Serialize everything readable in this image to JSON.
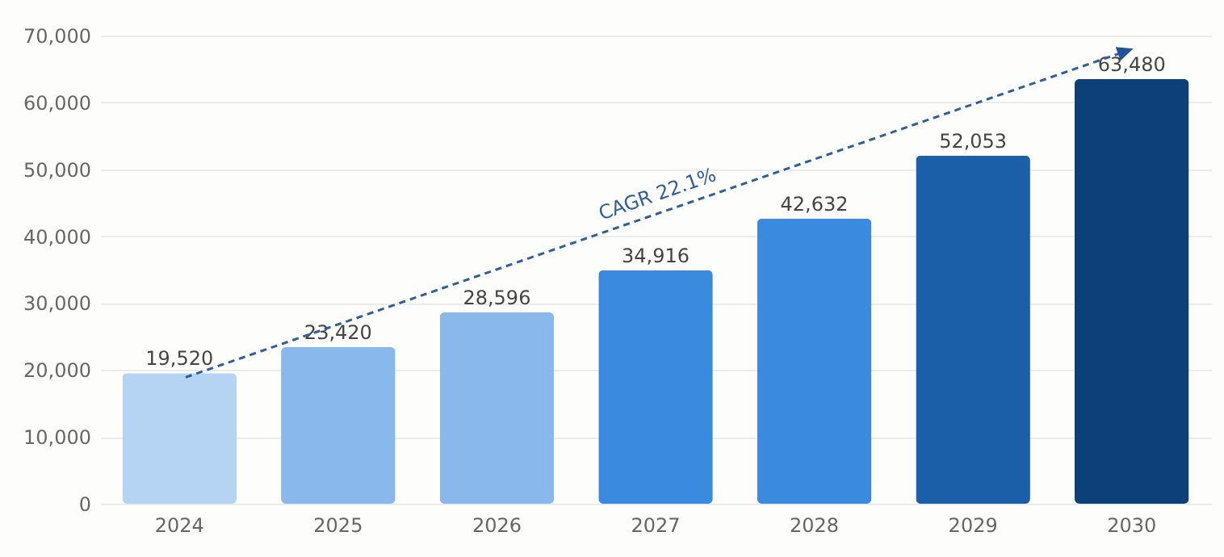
{
  "chart_data": {
    "type": "bar",
    "categories": [
      "2024",
      "2025",
      "2026",
      "2027",
      "2028",
      "2029",
      "2030"
    ],
    "values": [
      19520,
      23420,
      28596,
      34916,
      42632,
      52053,
      63480
    ],
    "colors": [
      "#b5d3f3",
      "#89b8ec",
      "#89b8ec",
      "#3a8ae0",
      "#3a8ae0",
      "#1b5fa8",
      "#0d4079"
    ],
    "ylim": [
      0,
      70000
    ],
    "yticks": [
      {
        "value": 0,
        "label": "0"
      },
      {
        "value": 10000,
        "label": "10,000"
      },
      {
        "value": 20000,
        "label": "20,000"
      },
      {
        "value": 30000,
        "label": "30,000"
      },
      {
        "value": 40000,
        "label": "40,000"
      },
      {
        "value": 50000,
        "label": "50,000"
      },
      {
        "value": 60000,
        "label": "60,000"
      },
      {
        "value": 70000,
        "label": "70,000"
      }
    ],
    "grid": "y",
    "value_labels": [
      "19,520",
      "23,420",
      "28,596",
      "34,916",
      "42,632",
      "52,053",
      "63,480"
    ],
    "annotations": [
      "CAGR 22.1%"
    ]
  }
}
